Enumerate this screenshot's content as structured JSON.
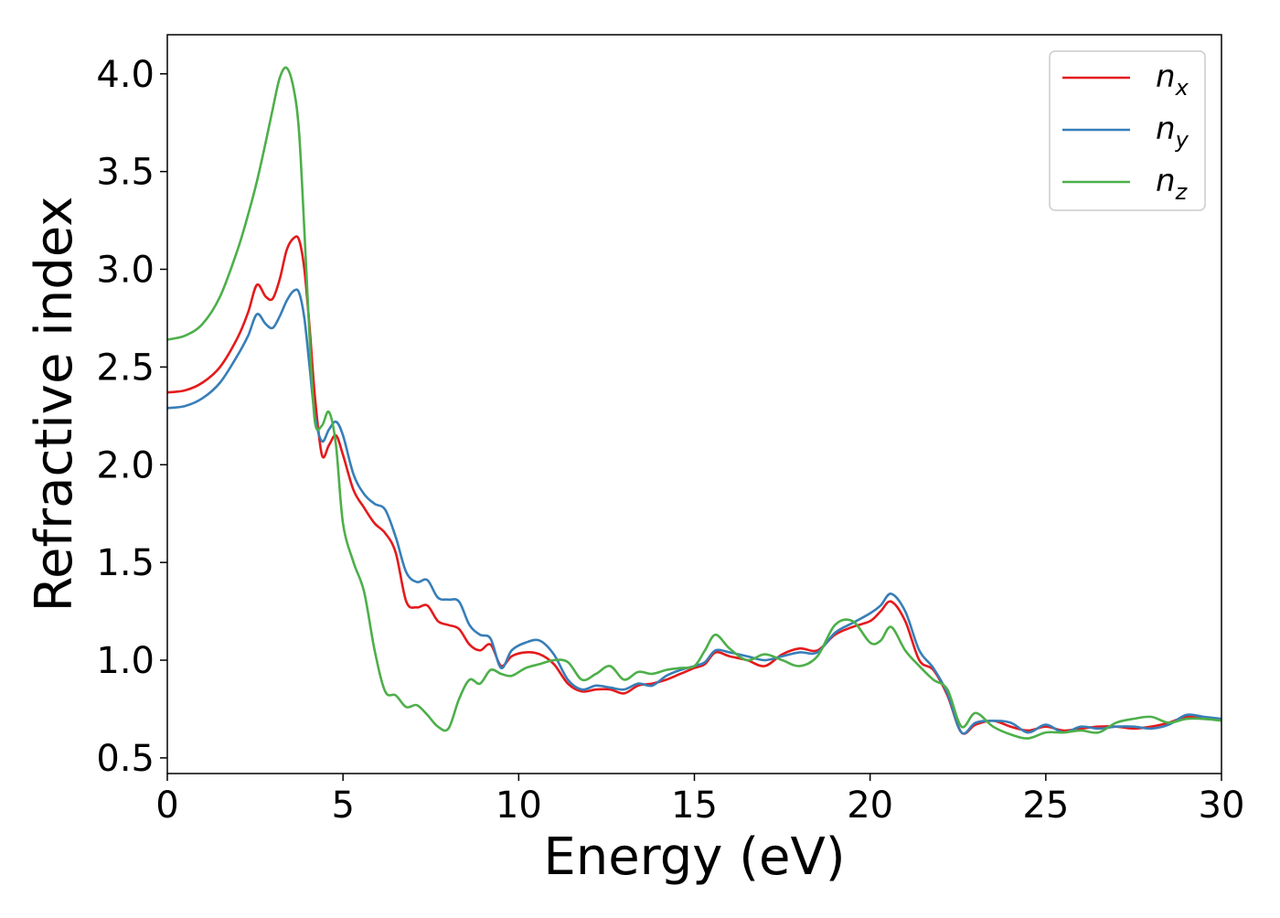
{
  "chart_data": {
    "type": "line",
    "xlabel": "Energy (eV)",
    "ylabel": "Refractive index",
    "xlim": [
      0,
      30
    ],
    "ylim": [
      0.42,
      4.2
    ],
    "grid": false,
    "legend_position": "top-right",
    "x_ticks": [
      0,
      5,
      10,
      15,
      20,
      25,
      30
    ],
    "y_ticks": [
      0.5,
      1.0,
      1.5,
      2.0,
      2.5,
      3.0,
      3.5,
      4.0
    ],
    "x_tick_labels": [
      "0",
      "5",
      "10",
      "15",
      "20",
      "25",
      "30"
    ],
    "y_tick_labels": [
      "0.5",
      "1.0",
      "1.5",
      "2.0",
      "2.5",
      "3.0",
      "3.5",
      "4.0"
    ],
    "series": [
      {
        "name": "n",
        "subscript": "x",
        "color": "#e41a1c",
        "x": [
          0,
          0.5,
          1,
          1.5,
          2,
          2.3,
          2.55,
          2.8,
          3.0,
          3.2,
          3.4,
          3.6,
          3.75,
          3.9,
          4.05,
          4.2,
          4.4,
          4.6,
          4.8,
          5.0,
          5.3,
          5.6,
          5.9,
          6.2,
          6.5,
          6.8,
          7.1,
          7.4,
          7.7,
          8.0,
          8.3,
          8.6,
          8.9,
          9.2,
          9.5,
          9.8,
          10.2,
          10.6,
          11.0,
          11.4,
          11.8,
          12.2,
          12.6,
          13.0,
          13.4,
          13.8,
          14.2,
          14.6,
          15.0,
          15.3,
          15.6,
          16.0,
          16.5,
          17.0,
          17.5,
          18.0,
          18.5,
          19.0,
          19.5,
          20.0,
          20.3,
          20.6,
          21.0,
          21.4,
          21.8,
          22.2,
          22.6,
          23.0,
          23.5,
          24.0,
          24.5,
          25.0,
          25.5,
          26.0,
          26.5,
          27.0,
          27.5,
          28.0,
          28.5,
          29.0,
          29.5,
          30.0
        ],
        "y": [
          2.37,
          2.38,
          2.42,
          2.5,
          2.65,
          2.78,
          2.92,
          2.86,
          2.85,
          2.95,
          3.1,
          3.16,
          3.15,
          3.0,
          2.7,
          2.35,
          2.05,
          2.1,
          2.15,
          2.05,
          1.87,
          1.78,
          1.7,
          1.65,
          1.55,
          1.3,
          1.27,
          1.28,
          1.2,
          1.18,
          1.16,
          1.08,
          1.05,
          1.08,
          0.97,
          1.02,
          1.04,
          1.03,
          0.98,
          0.88,
          0.84,
          0.85,
          0.85,
          0.83,
          0.87,
          0.88,
          0.9,
          0.93,
          0.96,
          0.98,
          1.04,
          1.02,
          1.0,
          0.97,
          1.03,
          1.06,
          1.05,
          1.13,
          1.17,
          1.2,
          1.25,
          1.3,
          1.2,
          1.0,
          0.95,
          0.82,
          0.63,
          0.67,
          0.69,
          0.66,
          0.64,
          0.66,
          0.64,
          0.65,
          0.66,
          0.66,
          0.65,
          0.66,
          0.68,
          0.71,
          0.7,
          0.7
        ]
      },
      {
        "name": "n",
        "subscript": "y",
        "color": "#377eb8",
        "x": [
          0,
          0.5,
          1,
          1.5,
          2,
          2.3,
          2.55,
          2.8,
          3.0,
          3.2,
          3.4,
          3.6,
          3.75,
          3.9,
          4.05,
          4.2,
          4.4,
          4.6,
          4.8,
          5.0,
          5.3,
          5.6,
          5.9,
          6.2,
          6.5,
          6.8,
          7.1,
          7.4,
          7.7,
          8.0,
          8.3,
          8.6,
          8.9,
          9.2,
          9.5,
          9.8,
          10.2,
          10.6,
          11.0,
          11.4,
          11.8,
          12.2,
          12.6,
          13.0,
          13.4,
          13.8,
          14.2,
          14.6,
          15.0,
          15.3,
          15.6,
          16.0,
          16.5,
          17.0,
          17.5,
          18.0,
          18.5,
          19.0,
          19.5,
          20.0,
          20.3,
          20.6,
          21.0,
          21.4,
          21.8,
          22.2,
          22.6,
          23.0,
          23.5,
          24.0,
          24.5,
          25.0,
          25.5,
          26.0,
          26.5,
          27.0,
          27.5,
          28.0,
          28.5,
          29.0,
          29.5,
          30.0
        ],
        "y": [
          2.29,
          2.3,
          2.34,
          2.42,
          2.56,
          2.66,
          2.77,
          2.72,
          2.7,
          2.76,
          2.84,
          2.89,
          2.88,
          2.75,
          2.5,
          2.25,
          2.12,
          2.18,
          2.22,
          2.15,
          1.95,
          1.85,
          1.8,
          1.77,
          1.63,
          1.45,
          1.4,
          1.41,
          1.32,
          1.31,
          1.3,
          1.18,
          1.13,
          1.11,
          0.96,
          1.05,
          1.09,
          1.1,
          1.03,
          0.9,
          0.85,
          0.87,
          0.86,
          0.85,
          0.88,
          0.87,
          0.92,
          0.95,
          0.97,
          0.99,
          1.05,
          1.04,
          1.02,
          1.0,
          1.02,
          1.04,
          1.04,
          1.14,
          1.19,
          1.24,
          1.28,
          1.34,
          1.25,
          1.05,
          0.96,
          0.83,
          0.63,
          0.68,
          0.69,
          0.68,
          0.63,
          0.67,
          0.63,
          0.66,
          0.65,
          0.66,
          0.66,
          0.65,
          0.67,
          0.72,
          0.71,
          0.7
        ]
      },
      {
        "name": "n",
        "subscript": "z",
        "color": "#4daf4a",
        "x": [
          0,
          0.5,
          1,
          1.5,
          2,
          2.3,
          2.55,
          2.8,
          3.0,
          3.2,
          3.4,
          3.6,
          3.75,
          3.9,
          4.05,
          4.2,
          4.4,
          4.6,
          4.8,
          5.0,
          5.3,
          5.6,
          5.9,
          6.2,
          6.5,
          6.8,
          7.1,
          7.4,
          7.7,
          8.0,
          8.3,
          8.6,
          8.9,
          9.2,
          9.5,
          9.8,
          10.2,
          10.6,
          11.0,
          11.4,
          11.8,
          12.2,
          12.6,
          13.0,
          13.4,
          13.8,
          14.2,
          14.6,
          15.0,
          15.3,
          15.6,
          16.0,
          16.5,
          17.0,
          17.5,
          18.0,
          18.5,
          19.0,
          19.5,
          20.0,
          20.3,
          20.6,
          21.0,
          21.4,
          21.8,
          22.2,
          22.6,
          23.0,
          23.5,
          24.0,
          24.5,
          25.0,
          25.5,
          26.0,
          26.5,
          27.0,
          27.5,
          28.0,
          28.5,
          29.0,
          29.5,
          30.0
        ],
        "y": [
          2.64,
          2.66,
          2.72,
          2.86,
          3.1,
          3.28,
          3.45,
          3.65,
          3.82,
          3.98,
          4.03,
          3.92,
          3.7,
          3.2,
          2.65,
          2.22,
          2.2,
          2.27,
          2.1,
          1.7,
          1.5,
          1.35,
          1.05,
          0.84,
          0.82,
          0.76,
          0.77,
          0.72,
          0.66,
          0.65,
          0.8,
          0.9,
          0.88,
          0.95,
          0.93,
          0.92,
          0.96,
          0.98,
          1.0,
          0.99,
          0.9,
          0.93,
          0.97,
          0.9,
          0.94,
          0.93,
          0.95,
          0.96,
          0.97,
          1.05,
          1.13,
          1.06,
          1.0,
          1.03,
          1.0,
          0.97,
          1.02,
          1.18,
          1.2,
          1.09,
          1.1,
          1.17,
          1.05,
          0.97,
          0.9,
          0.85,
          0.66,
          0.73,
          0.66,
          0.62,
          0.6,
          0.63,
          0.63,
          0.64,
          0.63,
          0.68,
          0.7,
          0.71,
          0.68,
          0.7,
          0.7,
          0.69
        ]
      }
    ]
  }
}
